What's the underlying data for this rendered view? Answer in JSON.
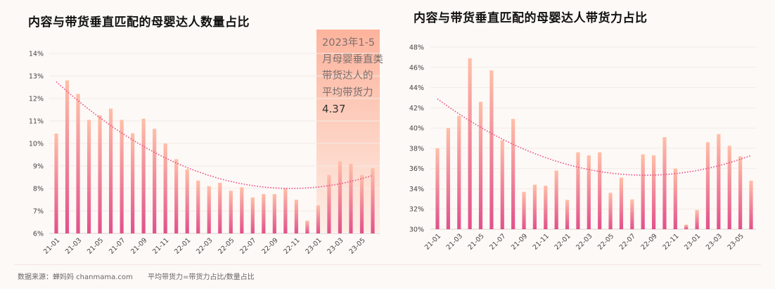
{
  "colors": {
    "bar_top": "#ffbfa8",
    "bar_bottom": "#e2508b",
    "trendline": "#e8508a",
    "highlight": "#fdb6a0",
    "background": "#fdf9f6"
  },
  "footer": {
    "source": "数据来源：蝉妈妈 chanmama.com",
    "formula": "平均带货力=带货力占比/数量占比"
  },
  "highlight_note": {
    "lines": [
      "2023年1-5",
      "月母婴垂直类",
      "带货达人的",
      "平均带货力"
    ],
    "value": "4.37"
  },
  "chart_data": [
    {
      "type": "bar",
      "title": "内容与带货垂直匹配的母婴达人数量占比",
      "categories": [
        "21-01",
        "21-02",
        "21-03",
        "21-04",
        "21-05",
        "21-06",
        "21-07",
        "21-08",
        "21-09",
        "21-10",
        "21-11",
        "21-12",
        "22-01",
        "22-02",
        "22-03",
        "22-04",
        "22-05",
        "22-06",
        "22-07",
        "22-08",
        "22-09",
        "22-10",
        "22-11",
        "22-12",
        "23-01",
        "23-02",
        "23-03",
        "23-04",
        "23-05",
        "23-06"
      ],
      "tick_labels": [
        "21-01",
        "21-03",
        "21-05",
        "21-07",
        "21-09",
        "21-11",
        "22-01",
        "22-03",
        "22-05",
        "22-07",
        "22-09",
        "22-11",
        "23-01",
        "23-03",
        "23-05"
      ],
      "values": [
        10.44,
        12.8,
        12.2,
        11.05,
        11.25,
        11.55,
        11.05,
        10.45,
        11.1,
        10.65,
        10.0,
        9.3,
        8.85,
        8.35,
        8.1,
        8.25,
        7.9,
        8.05,
        7.6,
        7.75,
        7.75,
        8.0,
        7.5,
        6.57,
        7.25,
        8.6,
        9.2,
        9.1,
        8.6,
        8.9
      ],
      "y_ticks": [
        "6%",
        "7%",
        "8%",
        "9%",
        "10%",
        "11%",
        "12%",
        "13%",
        "14%"
      ],
      "ylim": [
        6,
        14
      ],
      "unit": "%",
      "trendline": "polynomial (order 2), dotted",
      "highlight_range": [
        "23-01",
        "23-06"
      ],
      "grid": true
    },
    {
      "type": "bar",
      "title": "内容与带货垂直匹配的母婴达人带货力占比",
      "categories": [
        "21-01",
        "21-02",
        "21-03",
        "21-04",
        "21-05",
        "21-06",
        "21-07",
        "21-08",
        "21-09",
        "21-10",
        "21-11",
        "21-12",
        "22-01",
        "22-02",
        "22-03",
        "22-04",
        "22-05",
        "22-06",
        "22-07",
        "22-08",
        "22-09",
        "22-10",
        "22-11",
        "22-12",
        "23-01",
        "23-02",
        "23-03",
        "23-04",
        "23-05",
        "23-06"
      ],
      "tick_labels": [
        "21-01",
        "21-03",
        "21-05",
        "21-07",
        "21-09",
        "21-11",
        "22-01",
        "22-03",
        "22-05",
        "22-07",
        "22-09",
        "22-11",
        "23-01",
        "23-03",
        "23-05"
      ],
      "values": [
        38.0,
        40.0,
        41.2,
        46.9,
        42.6,
        45.7,
        38.8,
        40.9,
        33.7,
        34.4,
        34.3,
        35.8,
        32.9,
        37.6,
        37.3,
        37.6,
        33.6,
        35.1,
        32.95,
        37.4,
        37.3,
        39.1,
        36.0,
        30.45,
        31.9,
        38.6,
        39.4,
        38.25,
        37.2,
        34.8
      ],
      "y_ticks": [
        "30%",
        "32%",
        "34%",
        "36%",
        "38%",
        "40%",
        "42%",
        "44%",
        "46%",
        "48%"
      ],
      "ylim": [
        30,
        48
      ],
      "unit": "%",
      "trendline": "polynomial (order 2), dotted",
      "grid": true
    }
  ]
}
